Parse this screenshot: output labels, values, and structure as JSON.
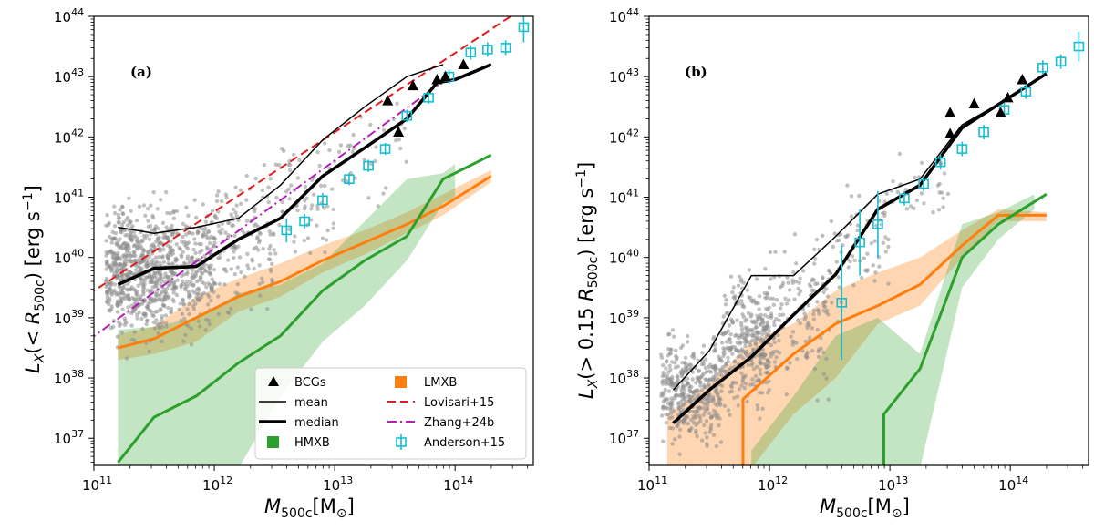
{
  "chart_data": [
    {
      "id": "a",
      "type": "scatter",
      "panel_tag": "(a)",
      "xlabel": "M_500c [M_⊙]",
      "ylabel": "L_X(< R_500c) [erg s^-1]",
      "xscale": "log",
      "yscale": "log",
      "xlim_log10": [
        11,
        14.65
      ],
      "ylim_log10": [
        36.55,
        44
      ],
      "x_ticks": [
        {
          "base": "10",
          "exp": "11",
          "v": 11
        },
        {
          "base": "10",
          "exp": "12",
          "v": 12
        },
        {
          "base": "10",
          "exp": "13",
          "v": 13
        },
        {
          "base": "10",
          "exp": "14",
          "v": 14
        }
      ],
      "y_ticks": [
        {
          "base": "10",
          "exp": "37",
          "v": 37
        },
        {
          "base": "10",
          "exp": "38",
          "v": 38
        },
        {
          "base": "10",
          "exp": "39",
          "v": 39
        },
        {
          "base": "10",
          "exp": "40",
          "v": 40
        },
        {
          "base": "10",
          "exp": "41",
          "v": 41
        },
        {
          "base": "10",
          "exp": "42",
          "v": 42
        },
        {
          "base": "10",
          "exp": "43",
          "v": 43
        },
        {
          "base": "10",
          "exp": "44",
          "v": 44
        }
      ],
      "scatter_cloud": [
        {
          "x0": 11.1,
          "x1": 11.6,
          "y0": 38.2,
          "y1": 41.3,
          "n": 600
        },
        {
          "x0": 11.6,
          "x1": 12.0,
          "y0": 38.4,
          "y1": 41.3,
          "n": 300
        },
        {
          "x0": 12.0,
          "x1": 12.5,
          "y0": 38.6,
          "y1": 41.8,
          "n": 140
        },
        {
          "x0": 12.5,
          "x1": 13.0,
          "y0": 39.6,
          "y1": 42.4,
          "n": 70
        },
        {
          "x0": 13.0,
          "x1": 13.6,
          "y0": 40.5,
          "y1": 42.9,
          "n": 30
        }
      ],
      "series": [
        {
          "name": "mean",
          "role": "line",
          "color": "#000000",
          "width": 1.5,
          "x": [
            11.2,
            11.5,
            11.85,
            12.2,
            12.55,
            12.9,
            13.25,
            13.6,
            13.9
          ],
          "y": [
            40.5,
            40.4,
            40.5,
            40.65,
            41.2,
            41.95,
            42.5,
            43.0,
            43.2
          ]
        },
        {
          "name": "median",
          "role": "line",
          "color": "#000000",
          "width": 3.5,
          "x": [
            11.2,
            11.5,
            11.85,
            12.2,
            12.55,
            12.9,
            13.25,
            13.6,
            13.85,
            14.0,
            14.3
          ],
          "y": [
            39.55,
            39.82,
            39.85,
            40.3,
            40.65,
            41.35,
            41.82,
            42.3,
            42.9,
            42.95,
            43.2
          ]
        },
        {
          "name": "Lovisari+15",
          "role": "line",
          "color": "#e31a1c",
          "dash": "9,5",
          "width": 2,
          "x": [
            10.95,
            14.5
          ],
          "y": [
            39.38,
            44.05
          ]
        },
        {
          "name": "Zhang+24b",
          "role": "line",
          "color": "#b21fb8",
          "dash": "10,4,2,4",
          "width": 2,
          "x": [
            10.95,
            13.9
          ],
          "y": [
            38.62,
            42.92
          ]
        },
        {
          "name": "LMXB",
          "role": "line",
          "color": "#ff7f0e",
          "width": 3,
          "x": [
            11.2,
            11.5,
            11.85,
            12.2,
            12.55,
            12.9,
            13.25,
            13.6,
            13.9,
            14.3
          ],
          "y": [
            38.5,
            38.65,
            39.0,
            39.35,
            39.6,
            39.95,
            40.25,
            40.55,
            40.85,
            41.35
          ]
        },
        {
          "name": "HMXB",
          "role": "line",
          "color": "#2ca02c",
          "width": 3,
          "x": [
            11.2,
            11.5,
            11.85,
            12.2,
            12.55,
            12.9,
            13.25,
            13.6,
            13.9,
            14.3
          ],
          "y": [
            36.6,
            37.35,
            37.7,
            38.25,
            38.7,
            39.45,
            39.95,
            40.35,
            41.3,
            41.7
          ]
        }
      ],
      "bands": [
        {
          "name": "LMXB",
          "color": "#ff7f0e",
          "opacity": 0.32,
          "x": [
            11.2,
            11.5,
            11.85,
            12.2,
            12.55,
            12.9,
            13.25,
            13.6,
            13.9,
            14.3
          ],
          "lower": [
            38.3,
            38.4,
            38.6,
            39.1,
            39.35,
            39.75,
            40.05,
            40.4,
            40.7,
            41.25
          ],
          "upper": [
            38.72,
            38.85,
            39.35,
            39.65,
            39.9,
            40.2,
            40.45,
            40.75,
            41.05,
            41.45
          ]
        },
        {
          "name": "HMXB",
          "color": "#2ca02c",
          "opacity": 0.28,
          "x": [
            11.2,
            11.5,
            11.85,
            12.2,
            12.55,
            12.9,
            13.25,
            13.6,
            13.9,
            14.0
          ],
          "lower": [
            36.5,
            36.5,
            36.5,
            36.5,
            37.7,
            38.6,
            39.2,
            39.95,
            40.9,
            41.0
          ],
          "upper": [
            38.8,
            38.85,
            39.0,
            39.4,
            39.55,
            39.9,
            40.6,
            41.3,
            41.4,
            41.55
          ]
        }
      ],
      "bcg_points": {
        "x": [
          13.44,
          13.65,
          13.53,
          13.85,
          13.92,
          14.07
        ],
        "y": [
          42.6,
          42.85,
          42.08,
          42.95,
          43.0,
          43.2
        ]
      },
      "anderson15": {
        "x": [
          12.6,
          12.75,
          12.9,
          13.12,
          13.28,
          13.42,
          13.6,
          13.78,
          13.95,
          14.13,
          14.27,
          14.42,
          14.57
        ],
        "y": [
          40.45,
          40.6,
          40.95,
          41.3,
          41.52,
          41.8,
          42.35,
          42.65,
          43.0,
          43.4,
          43.45,
          43.48,
          43.82
        ],
        "err": [
          0.2,
          0.12,
          0.12,
          0.1,
          0.1,
          0.1,
          0.1,
          0.1,
          0.12,
          0.12,
          0.12,
          0.12,
          0.25
        ]
      },
      "legend": [
        {
          "label": "BCGs",
          "marker": "triangle"
        },
        {
          "label": "mean",
          "marker": "thin-line"
        },
        {
          "label": "median",
          "marker": "thick-line"
        },
        {
          "label": "HMXB",
          "marker": "green-square"
        },
        {
          "label": "LMXB",
          "marker": "orange-square"
        },
        {
          "label": "Lovisari+15",
          "marker": "red-dash"
        },
        {
          "label": "Zhang+24b",
          "marker": "purple-dashdot"
        },
        {
          "label": "Anderson+15",
          "marker": "cyan-errbox"
        }
      ],
      "legend_position": "lower-right"
    },
    {
      "id": "b",
      "type": "scatter",
      "panel_tag": "(b)",
      "xlabel": "M_500c [M_⊙]",
      "ylabel": "L_X(> 0.15 R_500c) [erg s^-1]",
      "xscale": "log",
      "yscale": "log",
      "xlim_log10": [
        11,
        14.65
      ],
      "ylim_log10": [
        36.55,
        44
      ],
      "x_ticks": [
        {
          "base": "10",
          "exp": "11",
          "v": 11
        },
        {
          "base": "10",
          "exp": "12",
          "v": 12
        },
        {
          "base": "10",
          "exp": "13",
          "v": 13
        },
        {
          "base": "10",
          "exp": "14",
          "v": 14
        }
      ],
      "y_ticks": [
        {
          "base": "10",
          "exp": "37",
          "v": 37
        },
        {
          "base": "10",
          "exp": "38",
          "v": 38
        },
        {
          "base": "10",
          "exp": "39",
          "v": 39
        },
        {
          "base": "10",
          "exp": "40",
          "v": 40
        },
        {
          "base": "10",
          "exp": "41",
          "v": 41
        },
        {
          "base": "10",
          "exp": "42",
          "v": 42
        },
        {
          "base": "10",
          "exp": "43",
          "v": 43
        },
        {
          "base": "10",
          "exp": "44",
          "v": 44
        }
      ],
      "scatter_cloud": [
        {
          "x0": 11.1,
          "x1": 11.6,
          "y0": 36.6,
          "y1": 38.9,
          "n": 400
        },
        {
          "x0": 11.6,
          "x1": 12.0,
          "y0": 37.0,
          "y1": 40.1,
          "n": 320
        },
        {
          "x0": 12.0,
          "x1": 12.5,
          "y0": 37.4,
          "y1": 40.8,
          "n": 160
        },
        {
          "x0": 12.5,
          "x1": 13.0,
          "y0": 38.8,
          "y1": 41.8,
          "n": 70
        },
        {
          "x0": 13.0,
          "x1": 13.5,
          "y0": 40.2,
          "y1": 42.0,
          "n": 30
        }
      ],
      "series": [
        {
          "name": "mean",
          "role": "line",
          "color": "#000000",
          "width": 1.5,
          "x": [
            11.2,
            11.5,
            11.85,
            12.2,
            12.55,
            12.9,
            13.25,
            13.6,
            13.95
          ],
          "y": [
            37.8,
            38.45,
            39.7,
            39.7,
            40.35,
            41.05,
            41.3,
            42.2,
            42.6
          ]
        },
        {
          "name": "median",
          "role": "line",
          "color": "#000000",
          "width": 3.5,
          "x": [
            11.2,
            11.5,
            11.85,
            12.2,
            12.55,
            12.9,
            13.25,
            13.6,
            13.95,
            14.3
          ],
          "y": [
            37.25,
            37.8,
            38.35,
            39.05,
            39.72,
            40.8,
            41.2,
            42.15,
            42.6,
            43.05
          ]
        },
        {
          "name": "LMXB",
          "role": "line",
          "color": "#ff7f0e",
          "width": 3,
          "x": [
            11.78,
            11.78,
            12.2,
            12.55,
            12.9,
            13.25,
            13.6,
            13.9,
            14.3
          ],
          "y": [
            36.5,
            37.65,
            38.4,
            38.9,
            39.2,
            39.55,
            40.2,
            40.7,
            40.7
          ]
        },
        {
          "name": "HMXB",
          "role": "line",
          "color": "#2ca02c",
          "width": 3,
          "x": [
            12.95,
            12.95,
            13.25,
            13.6,
            13.9,
            14.3
          ],
          "y": [
            36.5,
            37.4,
            38.15,
            40.0,
            40.55,
            41.05
          ]
        }
      ],
      "bands": [
        {
          "name": "LMXB",
          "color": "#ff7f0e",
          "opacity": 0.32,
          "x": [
            11.15,
            11.5,
            11.85,
            12.2,
            12.55,
            12.9,
            13.25,
            13.6,
            13.9,
            14.3
          ],
          "lower": [
            36.5,
            36.5,
            36.5,
            37.4,
            38.0,
            38.9,
            39.2,
            40.0,
            40.6,
            40.6
          ],
          "upper": [
            37.4,
            37.9,
            38.6,
            38.9,
            39.45,
            39.75,
            40.0,
            40.45,
            40.8,
            40.75
          ]
        },
        {
          "name": "HMXB",
          "color": "#2ca02c",
          "opacity": 0.28,
          "x": [
            11.85,
            12.2,
            12.55,
            12.9,
            13.25,
            13.6,
            13.9,
            14.2
          ],
          "lower": [
            36.5,
            36.5,
            36.5,
            36.5,
            36.5,
            39.5,
            40.3,
            40.8
          ],
          "upper": [
            36.8,
            37.7,
            38.7,
            39.0,
            38.4,
            40.55,
            40.75,
            41.05
          ]
        }
      ],
      "bcg_points": {
        "x": [
          13.5,
          13.5,
          13.7,
          13.92,
          13.98,
          14.1
        ],
        "y": [
          42.4,
          42.05,
          42.55,
          42.4,
          42.65,
          42.95
        ]
      },
      "anderson15": {
        "x": [
          12.6,
          12.75,
          12.9,
          13.12,
          13.28,
          13.42,
          13.6,
          13.78,
          13.95,
          14.13,
          14.27,
          14.42,
          14.57
        ],
        "y": [
          39.25,
          40.25,
          40.55,
          40.98,
          41.22,
          41.58,
          41.8,
          42.08,
          42.45,
          42.75,
          43.15,
          43.25,
          43.5
        ],
        "err": [
          0.95,
          0.55,
          0.55,
          0.12,
          0.12,
          0.12,
          0.12,
          0.12,
          0.12,
          0.12,
          0.12,
          0.12,
          0.25
        ]
      },
      "legend": [],
      "legend_position": "none"
    }
  ]
}
